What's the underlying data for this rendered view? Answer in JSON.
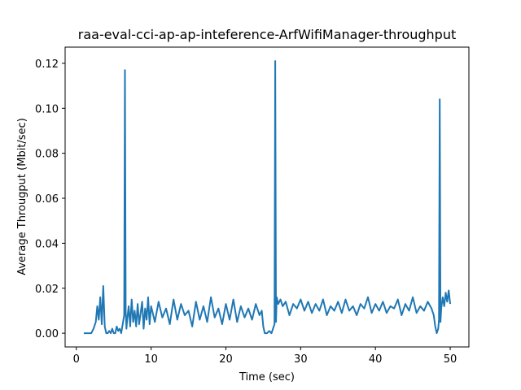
{
  "chart_data": {
    "type": "line",
    "title": "raa-eval-cci-ap-ap-inteference-ArfWifiManager-throughput",
    "xlabel": "Time (sec)",
    "ylabel": "Average Througput (Mbit/sec)",
    "xlim": [
      -1.5,
      52.5
    ],
    "ylim": [
      -0.0061,
      0.1272
    ],
    "x_ticks": [
      0,
      10,
      20,
      30,
      40,
      50
    ],
    "y_ticks": [
      0.0,
      0.02,
      0.04,
      0.06,
      0.08,
      0.1,
      0.12
    ],
    "x_tick_labels": [
      "0",
      "10",
      "20",
      "30",
      "40",
      "50"
    ],
    "y_tick_labels": [
      "0.00",
      "0.02",
      "0.04",
      "0.06",
      "0.08",
      "0.10",
      "0.12"
    ],
    "grid": false,
    "line_color": "#1f77b4",
    "series": [
      {
        "x": [
          1.0,
          1.5,
          2.0,
          2.3,
          2.6,
          2.8,
          3.0,
          3.2,
          3.4,
          3.6,
          3.8,
          4.0,
          4.2,
          4.4,
          4.6,
          4.8,
          5.0,
          5.2,
          5.4,
          5.6,
          5.8,
          6.0,
          6.2,
          6.4,
          6.5,
          6.6,
          6.7,
          6.8,
          7.0,
          7.2,
          7.4,
          7.6,
          7.8,
          8.0,
          8.2,
          8.4,
          8.6,
          8.8,
          9.0,
          9.2,
          9.4,
          9.6,
          9.8,
          10.0,
          10.5,
          11.0,
          11.5,
          12.0,
          12.5,
          13.0,
          13.5,
          14.0,
          14.5,
          15.0,
          15.5,
          16.0,
          16.5,
          17.0,
          17.5,
          18.0,
          18.5,
          19.0,
          19.5,
          20.0,
          20.5,
          21.0,
          21.5,
          22.0,
          22.5,
          23.0,
          23.5,
          24.0,
          24.5,
          24.8,
          25.0,
          25.2,
          25.5,
          25.8,
          26.1,
          26.3,
          26.5,
          26.6,
          26.7,
          26.8,
          27.0,
          27.3,
          27.6,
          28.0,
          28.5,
          29.0,
          29.5,
          30.0,
          30.5,
          31.0,
          31.5,
          32.0,
          32.5,
          33.0,
          33.5,
          34.0,
          34.5,
          35.0,
          35.5,
          36.0,
          36.5,
          37.0,
          37.5,
          38.0,
          38.5,
          39.0,
          39.5,
          40.0,
          40.5,
          41.0,
          41.5,
          42.0,
          42.5,
          43.0,
          43.5,
          44.0,
          44.5,
          45.0,
          45.5,
          46.0,
          46.5,
          47.0,
          47.5,
          47.8,
          48.0,
          48.2,
          48.4,
          48.5,
          48.6,
          48.7,
          48.8,
          49.0,
          49.2,
          49.4,
          49.6,
          49.8,
          50.0
        ],
        "y": [
          0.0,
          0.0,
          0.0,
          0.002,
          0.005,
          0.012,
          0.006,
          0.016,
          0.004,
          0.021,
          0.003,
          0.0,
          0.0,
          0.001,
          0.0,
          0.002,
          0.0,
          0.0,
          0.003,
          0.001,
          0.002,
          0.0,
          0.004,
          0.008,
          0.117,
          0.01,
          0.002,
          0.006,
          0.012,
          0.003,
          0.015,
          0.005,
          0.01,
          0.003,
          0.013,
          0.004,
          0.009,
          0.014,
          0.002,
          0.011,
          0.006,
          0.016,
          0.004,
          0.012,
          0.005,
          0.014,
          0.007,
          0.011,
          0.004,
          0.015,
          0.006,
          0.013,
          0.008,
          0.01,
          0.003,
          0.014,
          0.006,
          0.012,
          0.005,
          0.016,
          0.007,
          0.011,
          0.004,
          0.013,
          0.006,
          0.015,
          0.005,
          0.012,
          0.007,
          0.011,
          0.006,
          0.013,
          0.008,
          0.01,
          0.003,
          0.0,
          0.0,
          0.001,
          0.0,
          0.002,
          0.004,
          0.121,
          0.005,
          0.016,
          0.013,
          0.015,
          0.012,
          0.014,
          0.008,
          0.013,
          0.011,
          0.015,
          0.01,
          0.014,
          0.009,
          0.013,
          0.01,
          0.015,
          0.008,
          0.012,
          0.01,
          0.014,
          0.009,
          0.015,
          0.01,
          0.012,
          0.008,
          0.013,
          0.011,
          0.016,
          0.009,
          0.013,
          0.01,
          0.014,
          0.009,
          0.012,
          0.011,
          0.015,
          0.008,
          0.013,
          0.01,
          0.016,
          0.009,
          0.012,
          0.01,
          0.014,
          0.011,
          0.008,
          0.003,
          0.0,
          0.002,
          0.006,
          0.104,
          0.005,
          0.011,
          0.016,
          0.012,
          0.018,
          0.014,
          0.019,
          0.013
        ]
      }
    ]
  }
}
